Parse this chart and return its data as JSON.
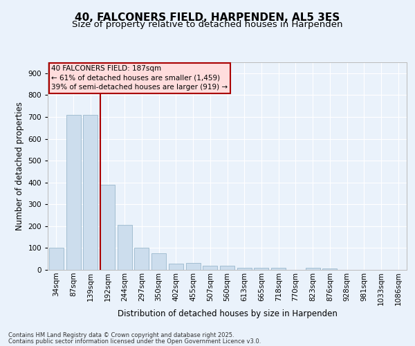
{
  "title1": "40, FALCONERS FIELD, HARPENDEN, AL5 3ES",
  "title2": "Size of property relative to detached houses in Harpenden",
  "xlabel": "Distribution of detached houses by size in Harpenden",
  "ylabel": "Number of detached properties",
  "categories": [
    "34sqm",
    "87sqm",
    "139sqm",
    "192sqm",
    "244sqm",
    "297sqm",
    "350sqm",
    "402sqm",
    "455sqm",
    "507sqm",
    "560sqm",
    "613sqm",
    "665sqm",
    "718sqm",
    "770sqm",
    "823sqm",
    "876sqm",
    "928sqm",
    "981sqm",
    "1033sqm",
    "1086sqm"
  ],
  "values": [
    100,
    710,
    710,
    390,
    205,
    100,
    75,
    30,
    33,
    20,
    20,
    10,
    8,
    8,
    0,
    10,
    5,
    0,
    0,
    0,
    0
  ],
  "bar_color": "#ccdded",
  "bar_edge_color": "#9ab8cc",
  "vline_x_index": 3,
  "vline_color": "#aa0000",
  "annotation_box_text": "40 FALCONERS FIELD: 187sqm\n← 61% of detached houses are smaller (1,459)\n39% of semi-detached houses are larger (919) →",
  "annot_box_facecolor": "#ffdddd",
  "annot_box_edge": "#aa0000",
  "ylim": [
    0,
    950
  ],
  "yticks": [
    0,
    100,
    200,
    300,
    400,
    500,
    600,
    700,
    800,
    900
  ],
  "footer1": "Contains HM Land Registry data © Crown copyright and database right 2025.",
  "footer2": "Contains public sector information licensed under the Open Government Licence v3.0.",
  "bg_color": "#eaf2fb",
  "plot_bg_color": "#eaf2fb",
  "grid_color": "#ffffff",
  "title_fontsize": 11,
  "subtitle_fontsize": 9.5,
  "tick_fontsize": 7.5,
  "label_fontsize": 8.5,
  "footer_fontsize": 6.0
}
